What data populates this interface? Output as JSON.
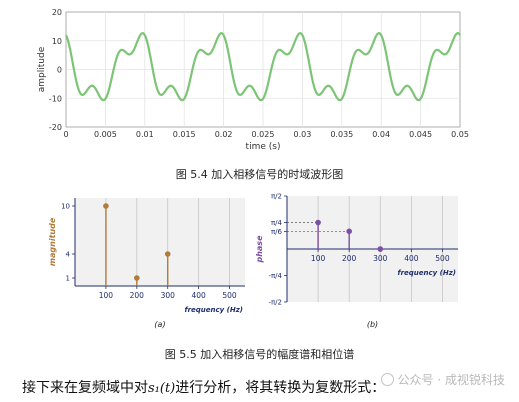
{
  "chart_data": [
    {
      "type": "line",
      "xlabel": "time (s)",
      "ylabel": "amplitude",
      "xlim": [
        0,
        0.05
      ],
      "ylim": [
        -20,
        20
      ],
      "x_ticks": [
        "0",
        "0.005",
        "0.01",
        "0.015",
        "0.02",
        "0.025",
        "0.03",
        "0.035",
        "0.04",
        "0.045",
        "0.05"
      ],
      "y_ticks": [
        "-20",
        "-10",
        "0",
        "10",
        "20"
      ],
      "grid": true,
      "line_color": "#7cc576",
      "signal": {
        "offset": 0,
        "components": [
          {
            "frequency": 100,
            "amplitude": 10,
            "phase": 0.7854
          },
          {
            "frequency": 200,
            "amplitude": 1,
            "phase": 0.5236
          },
          {
            "frequency": 300,
            "amplitude": 4,
            "phase": 0
          }
        ]
      }
    },
    {
      "type": "stem",
      "label": "(a)",
      "xlabel": "frequency (Hz)",
      "ylabel": "magnitude",
      "xlim": [
        0,
        550
      ],
      "ylim": [
        0,
        11
      ],
      "x_ticks": [
        "100",
        "200",
        "300",
        "400",
        "500"
      ],
      "y_ticks": [
        "1",
        "4",
        "10"
      ],
      "color": "#b07b3b",
      "x": [
        100,
        200,
        300
      ],
      "values": [
        10,
        1,
        4
      ]
    },
    {
      "type": "stem",
      "label": "(b)",
      "xlabel": "frequency (Hz)",
      "ylabel": "phase",
      "xlim": [
        0,
        550
      ],
      "ylim": [
        -0.5,
        0.5
      ],
      "x_ticks": [
        "100",
        "200",
        "300",
        "400",
        "500"
      ],
      "y_ticks": [
        "π/2",
        "π/4",
        "π/6",
        "-π/4",
        "-π/2"
      ],
      "color": "#7b4fa3",
      "x": [
        100,
        200,
        300
      ],
      "values": [
        0.25,
        0.1667,
        0
      ]
    }
  ],
  "captions": {
    "fig54": "图 5.4 加入相移信号的时域波形图",
    "fig55": "图 5.5 加入相移信号的幅度谱和相位谱"
  },
  "body": {
    "text_before": "接下来在复频域中对",
    "math": "s₁(t)",
    "text_after": "进行分析，将其转换为复数形式："
  },
  "watermark": "公众号 · 成视锐科技"
}
